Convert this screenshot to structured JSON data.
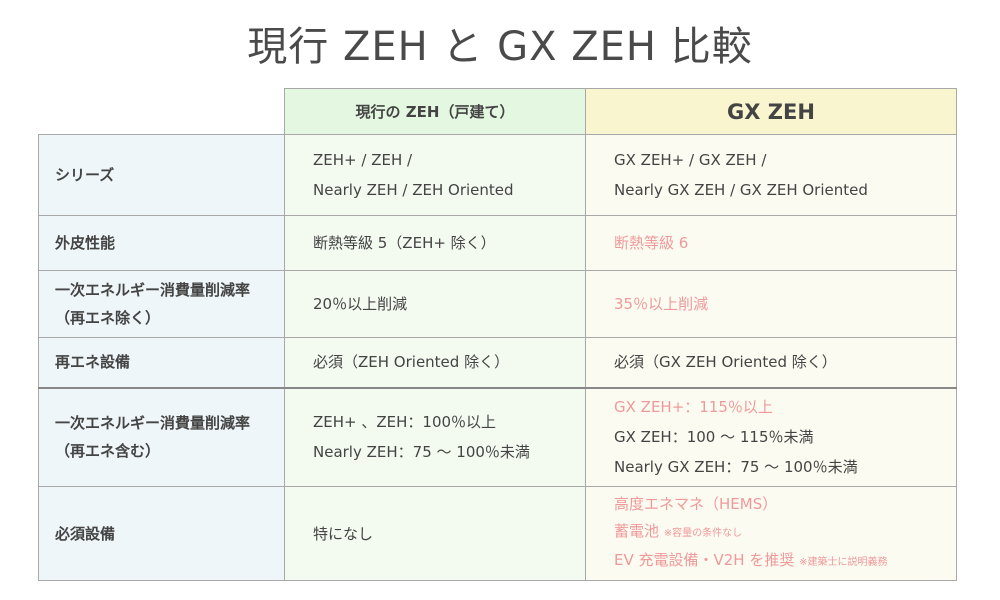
{
  "title": "現行 ZEH と GX ZEH 比較",
  "columns": {
    "current": "現行の ZEH（戸建て）",
    "gx": "GX ZEH"
  },
  "colors": {
    "accent": "#ef9a9a",
    "header_current": "#e4f8e1",
    "header_gx": "#f8f5cf",
    "label_bg": "#eef6f9"
  },
  "rows": [
    {
      "label": [
        "シリーズ"
      ],
      "current": [
        {
          "text": "ZEH+ / ZEH /"
        },
        {
          "text": "Nearly ZEH / ZEH Oriented"
        }
      ],
      "gx": [
        {
          "text": "GX ZEH+ / GX ZEH /"
        },
        {
          "text": "Nearly GX ZEH / GX ZEH Oriented"
        }
      ]
    },
    {
      "label": [
        "外皮性能"
      ],
      "current": [
        {
          "text": "断熱等級 5（ZEH+ 除く）"
        }
      ],
      "gx": [
        {
          "text": "断熱等級 6",
          "accent": true
        }
      ]
    },
    {
      "label": [
        "一次エネルギー消費量削減率",
        "（再エネ除く）"
      ],
      "current": [
        {
          "text": "20％以上削減"
        }
      ],
      "gx": [
        {
          "text": "35％以上削減",
          "accent": true
        }
      ]
    },
    {
      "label": [
        "再エネ設備"
      ],
      "current": [
        {
          "text": "必須（ZEH Oriented 除く）"
        }
      ],
      "gx": [
        {
          "text": "必須（GX ZEH Oriented 除く）"
        }
      ]
    },
    {
      "label": [
        "一次エネルギー消費量削減率",
        "（再エネ含む）"
      ],
      "current": [
        {
          "text": "ZEH+ 、ZEH：100％以上"
        },
        {
          "text": "Nearly ZEH：75 〜 100％未満"
        }
      ],
      "gx": [
        {
          "text": "GX ZEH+：115％以上",
          "accent": true
        },
        {
          "text": "GX ZEH：100 〜 115％未満"
        },
        {
          "text": "Nearly GX ZEH：75 〜 100％未満"
        }
      ]
    },
    {
      "label": [
        "必須設備"
      ],
      "current": [
        {
          "text": "特になし"
        }
      ],
      "gx": [
        {
          "text": "高度エネマネ（HEMS）",
          "accent": true
        },
        {
          "text": "蓄電池",
          "note": "※容量の条件なし",
          "accent": true
        },
        {
          "text": "EV 充電設備・V2H を推奨",
          "note": "※建築士に説明義務",
          "accent": true
        }
      ]
    }
  ]
}
